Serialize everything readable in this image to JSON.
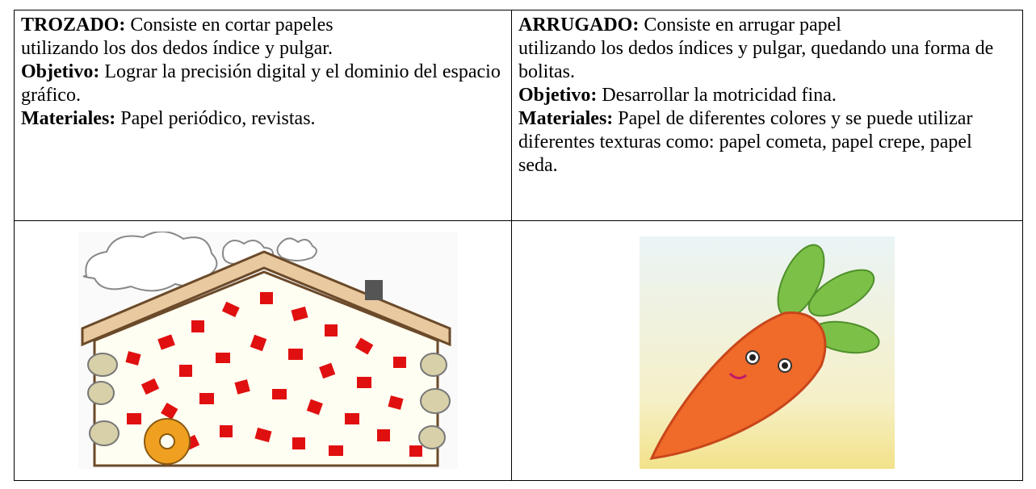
{
  "table": {
    "rows": [
      [
        {
          "term": "TROZADO:",
          "description": [
            "Consiste en cortar papeles",
            "utilizando los dos dedos índice y pulgar."
          ],
          "objective_label": "Objetivo:",
          "objective": "Lograr la precisión digital y el dominio del espacio gráfico.",
          "materials_label": "Materiales:",
          "materials": "Papel periódico, revistas."
        },
        {
          "term": "ARRUGADO:",
          "description": [
            "Consiste en arrugar papel",
            "utilizando los dedos índices y pulgar, quedando una forma de bolitas."
          ],
          "objective_label": "Objetivo:",
          "objective": "Desarrollar la motricidad fina.",
          "materials_label": "Materiales:",
          "materials": "Papel de diferentes colores y se puede utilizar diferentes texturas como: papel cometa, papel crepe, papel seda."
        }
      ]
    ]
  }
}
